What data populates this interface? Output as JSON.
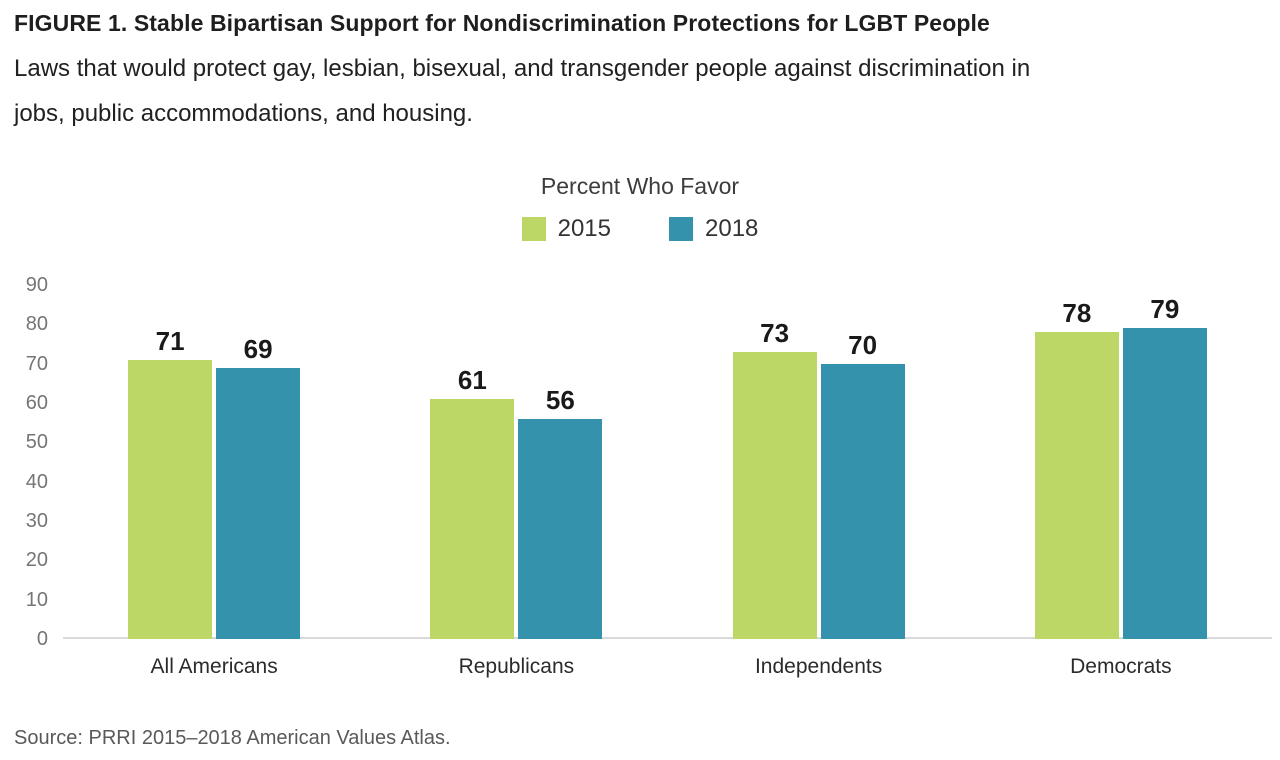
{
  "header": {
    "title": "FIGURE 1. Stable Bipartisan Support for Nondiscrimination Protections for LGBT People",
    "subtitle_lines": [
      "Laws that would protect gay, lesbian, bisexual, and transgender people against discrimination in",
      "jobs, public accommodations, and housing."
    ]
  },
  "chart_data": {
    "type": "bar",
    "title": "Percent Who Favor",
    "categories": [
      "All Americans",
      "Republicans",
      "Independents",
      "Democrats"
    ],
    "series": [
      {
        "name": "2015",
        "color": "#bcd766",
        "values": [
          71,
          61,
          73,
          78
        ]
      },
      {
        "name": "2018",
        "color": "#3492ad",
        "values": [
          69,
          56,
          70,
          79
        ]
      }
    ],
    "ylim": [
      0,
      90
    ],
    "ytick_step": 10,
    "grid": false,
    "legend_position": "top-center",
    "value_labels": true
  },
  "footer": {
    "source": "Source: PRRI 2015–2018 American Values Atlas."
  },
  "colors": {
    "series_2015": "#bcd766",
    "series_2018": "#3492ad",
    "axis_line": "#d9d9d9",
    "tick_label": "#757575",
    "value_label": "#1a1a1a",
    "text": "#1e1e1e",
    "source_text": "#595959"
  }
}
